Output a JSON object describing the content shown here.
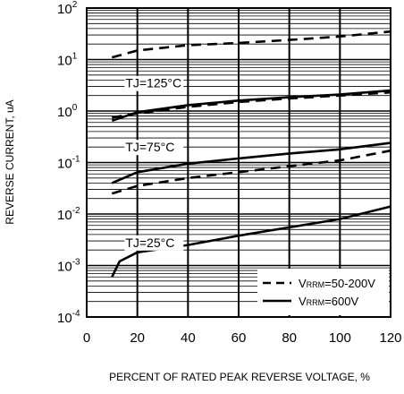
{
  "chart_data": {
    "type": "line",
    "xlabel": "PERCENT OF RATED PEAK REVERSE VOLTAGE, %",
    "ylabel": "REVERSE CURRENT, uA",
    "xlim": [
      0,
      120
    ],
    "ylim": [
      0.0001,
      100
    ],
    "yscale": "log",
    "grid": "on",
    "legend_placement": "bottom-right",
    "x_ticks": [
      0,
      20,
      40,
      60,
      80,
      100,
      120
    ],
    "y_tick_mantissa": "10",
    "y_tick_exponents": [
      "-4",
      "-3",
      "-2",
      "-1",
      "0",
      "1",
      "2"
    ],
    "legend": [
      {
        "label_sub": "RRM",
        "label_prefix": "V",
        "label_rest": "=50-200V",
        "style": "dashed"
      },
      {
        "label_sub": "RRM",
        "label_prefix": "V",
        "label_rest": "=600V",
        "style": "solid"
      }
    ],
    "annotations": [
      {
        "text": "TJ=125°C",
        "x": 22,
        "y": 3.5
      },
      {
        "text": "TJ=75°C",
        "x": 22,
        "y": 0.2
      },
      {
        "text": "TJ=25°C",
        "x": 22,
        "y": 0.0028
      }
    ],
    "series": [
      {
        "group": "TJ=125°C",
        "style": "dashed",
        "x": [
          10,
          20,
          40,
          60,
          80,
          100,
          120
        ],
        "y": [
          11,
          15,
          19,
          21,
          24,
          28,
          35
        ]
      },
      {
        "group": "TJ=125°C",
        "style": "solid",
        "x": [
          10,
          20,
          40,
          60,
          80,
          100,
          120
        ],
        "y": [
          0.65,
          0.95,
          1.3,
          1.6,
          1.85,
          2.1,
          2.5
        ]
      },
      {
        "group": "TJ=125°C",
        "style": "dashed",
        "x": [
          10,
          20,
          40,
          60,
          80,
          100,
          120
        ],
        "y": [
          0.75,
          0.9,
          1.2,
          1.5,
          1.75,
          2.0,
          2.3
        ]
      },
      {
        "group": "TJ=75°C",
        "style": "solid",
        "x": [
          10,
          20,
          40,
          60,
          80,
          100,
          120
        ],
        "y": [
          0.04,
          0.065,
          0.095,
          0.12,
          0.15,
          0.18,
          0.24
        ]
      },
      {
        "group": "TJ=75°C",
        "style": "dashed",
        "x": [
          10,
          20,
          40,
          60,
          80,
          100,
          120
        ],
        "y": [
          0.025,
          0.035,
          0.05,
          0.065,
          0.085,
          0.11,
          0.17
        ]
      },
      {
        "group": "TJ=25°C",
        "style": "solid",
        "x": [
          10,
          13,
          20,
          40,
          60,
          80,
          100,
          120
        ],
        "y": [
          0.0006,
          0.0012,
          0.0018,
          0.0025,
          0.0038,
          0.0055,
          0.008,
          0.014
        ]
      }
    ]
  }
}
